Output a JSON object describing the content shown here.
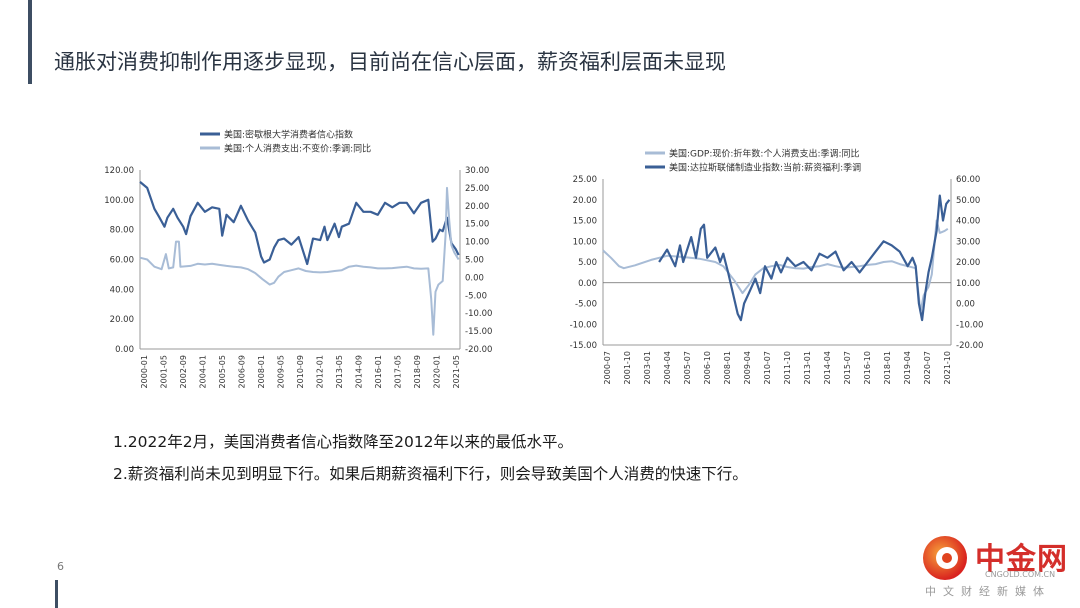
{
  "slide": {
    "title": "通胀对消费抑制作用逐步显现，目前尚在信心层面，薪资福利层面未显现",
    "page_number": "6",
    "bullets": [
      "1.2022年2月，美国消费者信心指数降至2012年以来的最低水平。",
      "2.薪资福利尚未见到明显下行。如果后期薪资福利下行，则会导致美国个人消费的快速下行。"
    ]
  },
  "logo": {
    "name": "中金网",
    "url": "CNGOLD.COM.CN",
    "tagline": "中文财经新媒体"
  },
  "colors": {
    "dark_series": "#3a5f96",
    "light_series": "#a8bcd6",
    "axis": "#999999",
    "title_bar": "#3d4e63"
  },
  "chart_data": [
    {
      "type": "line",
      "legend_position": "top",
      "grid": false,
      "x_tick_labels": [
        "2000-01",
        "2001-05",
        "2002-09",
        "2004-01",
        "2005-05",
        "2006-09",
        "2008-01",
        "2009-05",
        "2010-09",
        "2012-01",
        "2013-05",
        "2014-09",
        "2016-01",
        "2017-05",
        "2018-09",
        "2020-01",
        "2021-05"
      ],
      "x_range": [
        2000.0,
        2022.2
      ],
      "y_left_ticks": [
        "120.00",
        "100.00",
        "80.00",
        "60.00",
        "40.00",
        "20.00",
        "0.00"
      ],
      "y_left_range": [
        0,
        120
      ],
      "y_right_ticks": [
        "30.00",
        "25.00",
        "20.00",
        "15.00",
        "10.00",
        "5.00",
        "0.00",
        "-5.00",
        "-10.00",
        "-15.00",
        "-20.00"
      ],
      "y_right_range": [
        -20,
        30
      ],
      "series": [
        {
          "name": "美国:密歇根大学消费者信心指数",
          "axis": "left",
          "color": "#3a5f96",
          "points": [
            [
              2000.0,
              112
            ],
            [
              2000.5,
              108
            ],
            [
              2001.0,
              94
            ],
            [
              2001.3,
              89
            ],
            [
              2001.7,
              82
            ],
            [
              2001.9,
              88
            ],
            [
              2002.3,
              94
            ],
            [
              2002.6,
              88
            ],
            [
              2003.0,
              82
            ],
            [
              2003.2,
              77
            ],
            [
              2003.5,
              89
            ],
            [
              2004.0,
              98
            ],
            [
              2004.5,
              92
            ],
            [
              2005.0,
              95
            ],
            [
              2005.5,
              94
            ],
            [
              2005.7,
              76
            ],
            [
              2006.0,
              90
            ],
            [
              2006.5,
              85
            ],
            [
              2007.0,
              96
            ],
            [
              2007.5,
              86
            ],
            [
              2008.0,
              78
            ],
            [
              2008.4,
              62
            ],
            [
              2008.6,
              58
            ],
            [
              2009.0,
              60
            ],
            [
              2009.3,
              68
            ],
            [
              2009.6,
              73
            ],
            [
              2010.0,
              74
            ],
            [
              2010.5,
              70
            ],
            [
              2011.0,
              75
            ],
            [
              2011.6,
              57
            ],
            [
              2012.0,
              74
            ],
            [
              2012.5,
              73
            ],
            [
              2012.8,
              82
            ],
            [
              2013.0,
              73
            ],
            [
              2013.5,
              84
            ],
            [
              2013.8,
              75
            ],
            [
              2014.0,
              82
            ],
            [
              2014.5,
              84
            ],
            [
              2015.0,
              98
            ],
            [
              2015.5,
              92
            ],
            [
              2016.0,
              92
            ],
            [
              2016.5,
              90
            ],
            [
              2017.0,
              98
            ],
            [
              2017.5,
              95
            ],
            [
              2018.0,
              98
            ],
            [
              2018.5,
              98
            ],
            [
              2019.0,
              91
            ],
            [
              2019.5,
              98
            ],
            [
              2020.0,
              100
            ],
            [
              2020.3,
              72
            ],
            [
              2020.5,
              74
            ],
            [
              2020.8,
              80
            ],
            [
              2021.0,
              79
            ],
            [
              2021.3,
              88
            ],
            [
              2021.6,
              71
            ],
            [
              2021.9,
              67
            ],
            [
              2022.1,
              63
            ]
          ]
        },
        {
          "name": "美国:个人消费支出:不变价:季调:同比",
          "axis": "right",
          "color": "#a8bcd6",
          "points": [
            [
              2000.0,
              5.5
            ],
            [
              2000.5,
              5.0
            ],
            [
              2001.0,
              3.0
            ],
            [
              2001.5,
              2.3
            ],
            [
              2001.8,
              6.5
            ],
            [
              2002.0,
              2.5
            ],
            [
              2002.3,
              2.8
            ],
            [
              2002.5,
              10
            ],
            [
              2002.7,
              10
            ],
            [
              2002.8,
              3.0
            ],
            [
              2003.5,
              3.2
            ],
            [
              2004.0,
              3.8
            ],
            [
              2004.5,
              3.6
            ],
            [
              2005.0,
              3.8
            ],
            [
              2005.5,
              3.5
            ],
            [
              2006.0,
              3.2
            ],
            [
              2006.5,
              3.0
            ],
            [
              2007.0,
              2.8
            ],
            [
              2007.5,
              2.3
            ],
            [
              2008.0,
              1.2
            ],
            [
              2008.5,
              -0.5
            ],
            [
              2009.0,
              -2.0
            ],
            [
              2009.3,
              -1.5
            ],
            [
              2009.6,
              0.2
            ],
            [
              2010.0,
              1.5
            ],
            [
              2010.5,
              2.0
            ],
            [
              2011.0,
              2.5
            ],
            [
              2011.5,
              1.8
            ],
            [
              2012.0,
              1.5
            ],
            [
              2012.5,
              1.4
            ],
            [
              2013.0,
              1.5
            ],
            [
              2013.5,
              1.8
            ],
            [
              2014.0,
              2.0
            ],
            [
              2014.5,
              3.0
            ],
            [
              2015.0,
              3.3
            ],
            [
              2015.5,
              3.0
            ],
            [
              2016.0,
              2.8
            ],
            [
              2016.5,
              2.5
            ],
            [
              2017.0,
              2.5
            ],
            [
              2017.5,
              2.6
            ],
            [
              2018.0,
              2.8
            ],
            [
              2018.5,
              3.0
            ],
            [
              2019.0,
              2.5
            ],
            [
              2019.5,
              2.4
            ],
            [
              2020.0,
              2.5
            ],
            [
              2020.2,
              -6
            ],
            [
              2020.35,
              -16
            ],
            [
              2020.5,
              -4
            ],
            [
              2020.7,
              -2
            ],
            [
              2021.0,
              -1
            ],
            [
              2021.2,
              12
            ],
            [
              2021.3,
              25
            ],
            [
              2021.45,
              16
            ],
            [
              2021.6,
              9
            ],
            [
              2021.8,
              7
            ],
            [
              2022.1,
              5
            ]
          ]
        }
      ]
    },
    {
      "type": "line",
      "legend_position": "top",
      "grid": false,
      "x_tick_labels": [
        "2000-07",
        "2001-10",
        "2003-01",
        "2004-04",
        "2005-07",
        "2006-10",
        "2008-01",
        "2009-04",
        "2010-07",
        "2011-10",
        "2013-01",
        "2014-04",
        "2015-07",
        "2016-10",
        "2018-01",
        "2019-04",
        "2020-07",
        "2021-10"
      ],
      "x_range": [
        2000.5,
        2022.2
      ],
      "y_left_ticks": [
        "25.00",
        "20.00",
        "15.00",
        "10.00",
        "5.00",
        "0.00",
        "-5.00",
        "-10.00",
        "-15.00"
      ],
      "y_left_range": [
        -15,
        25
      ],
      "y_right_ticks": [
        "60.00",
        "50.00",
        "40.00",
        "30.00",
        "20.00",
        "10.00",
        "0.00",
        "-10.00",
        "-20.00"
      ],
      "y_right_range": [
        -20,
        60
      ],
      "series": [
        {
          "name": "美国:GDP:现价:折年数:个人消费支出:季调:同比",
          "axis": "left",
          "color": "#a8bcd6",
          "points": [
            [
              2000.5,
              7.8
            ],
            [
              2001.0,
              6.0
            ],
            [
              2001.5,
              4.0
            ],
            [
              2001.8,
              3.5
            ],
            [
              2002.5,
              4.2
            ],
            [
              2003.5,
              5.5
            ],
            [
              2004.5,
              6.5
            ],
            [
              2005.5,
              6.2
            ],
            [
              2006.5,
              5.8
            ],
            [
              2007.5,
              5.0
            ],
            [
              2008.0,
              4.0
            ],
            [
              2008.7,
              0.5
            ],
            [
              2009.2,
              -2.5
            ],
            [
              2009.6,
              -0.5
            ],
            [
              2010.0,
              2.0
            ],
            [
              2010.5,
              3.5
            ],
            [
              2011.0,
              4.0
            ],
            [
              2011.5,
              4.3
            ],
            [
              2012.0,
              3.8
            ],
            [
              2012.5,
              3.5
            ],
            [
              2013.0,
              3.4
            ],
            [
              2013.5,
              3.8
            ],
            [
              2014.0,
              4.0
            ],
            [
              2014.5,
              4.5
            ],
            [
              2015.0,
              4.0
            ],
            [
              2015.5,
              3.6
            ],
            [
              2016.0,
              3.8
            ],
            [
              2016.5,
              4.0
            ],
            [
              2017.0,
              4.3
            ],
            [
              2017.5,
              4.5
            ],
            [
              2018.0,
              5.0
            ],
            [
              2018.5,
              5.2
            ],
            [
              2019.0,
              4.5
            ],
            [
              2019.5,
              4.0
            ],
            [
              2020.0,
              3.5
            ],
            [
              2020.3,
              -7.0
            ],
            [
              2020.5,
              -3.0
            ],
            [
              2020.8,
              -1.0
            ],
            [
              2021.0,
              2.0
            ],
            [
              2021.3,
              15.0
            ],
            [
              2021.5,
              12.0
            ],
            [
              2021.8,
              12.5
            ],
            [
              2022.0,
              13.0
            ]
          ]
        },
        {
          "name": "美国:达拉斯联储制造业指数:当前:薪资福利:季调",
          "axis": "right",
          "color": "#3a5f96",
          "points": [
            [
              2004.0,
              20
            ],
            [
              2004.5,
              26
            ],
            [
              2005.0,
              18
            ],
            [
              2005.3,
              28
            ],
            [
              2005.5,
              20
            ],
            [
              2006.0,
              32
            ],
            [
              2006.3,
              22
            ],
            [
              2006.6,
              36
            ],
            [
              2006.8,
              38
            ],
            [
              2007.0,
              22
            ],
            [
              2007.5,
              27
            ],
            [
              2007.8,
              20
            ],
            [
              2008.0,
              24
            ],
            [
              2008.3,
              15
            ],
            [
              2008.6,
              5
            ],
            [
              2008.9,
              -5
            ],
            [
              2009.1,
              -8
            ],
            [
              2009.3,
              0
            ],
            [
              2009.6,
              5
            ],
            [
              2010.0,
              12
            ],
            [
              2010.3,
              5
            ],
            [
              2010.6,
              18
            ],
            [
              2011.0,
              12
            ],
            [
              2011.3,
              20
            ],
            [
              2011.6,
              15
            ],
            [
              2012.0,
              22
            ],
            [
              2012.5,
              18
            ],
            [
              2013.0,
              20
            ],
            [
              2013.5,
              16
            ],
            [
              2014.0,
              24
            ],
            [
              2014.5,
              22
            ],
            [
              2015.0,
              25
            ],
            [
              2015.5,
              16
            ],
            [
              2016.0,
              20
            ],
            [
              2016.5,
              15
            ],
            [
              2017.0,
              20
            ],
            [
              2017.5,
              25
            ],
            [
              2018.0,
              30
            ],
            [
              2018.5,
              28
            ],
            [
              2019.0,
              25
            ],
            [
              2019.5,
              18
            ],
            [
              2019.8,
              22
            ],
            [
              2020.0,
              18
            ],
            [
              2020.2,
              0
            ],
            [
              2020.4,
              -8
            ],
            [
              2020.6,
              5
            ],
            [
              2020.8,
              15
            ],
            [
              2021.0,
              22
            ],
            [
              2021.3,
              35
            ],
            [
              2021.5,
              52
            ],
            [
              2021.7,
              40
            ],
            [
              2021.9,
              48
            ],
            [
              2022.1,
              50
            ]
          ]
        }
      ]
    }
  ]
}
